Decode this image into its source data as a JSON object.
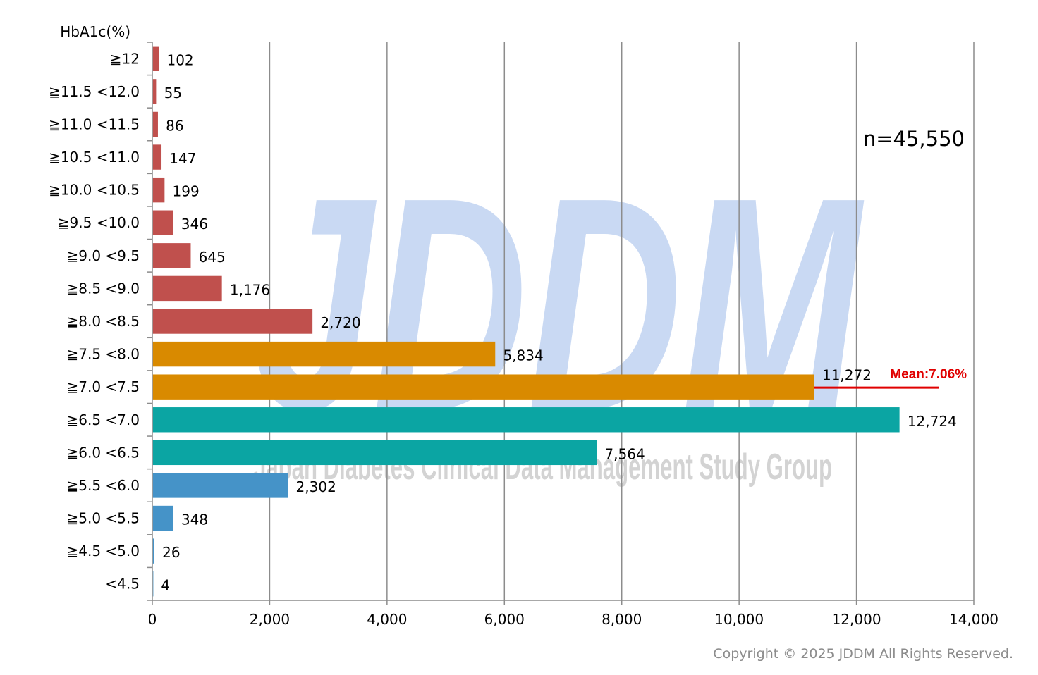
{
  "chart_data": {
    "type": "bar",
    "orientation": "horizontal",
    "ylabel": "HbA1c(%)",
    "categories": [
      "≧12",
      "≧11.5 <12.0",
      "≧11.0 <11.5",
      "≧10.5 <11.0",
      "≧10.0 <10.5",
      "≧9.5 <10.0",
      "≧9.0 <9.5",
      "≧8.5 <9.0",
      "≧8.0 <8.5",
      "≧7.5 <8.0",
      "≧7.0 <7.5",
      "≧6.5 <7.0",
      "≧6.0 <6.5",
      "≧5.5 <6.0",
      "≧5.0 <5.5",
      "≧4.5 <5.0",
      "<4.5"
    ],
    "values": [
      102,
      55,
      86,
      147,
      199,
      346,
      645,
      1176,
      2720,
      5834,
      11272,
      12724,
      7564,
      2302,
      348,
      26,
      4
    ],
    "value_labels": [
      "102",
      "55",
      "86",
      "147",
      "199",
      "346",
      "645",
      "1,176",
      "2,720",
      "5,834",
      "11,272",
      "12,724",
      "7,564",
      "2,302",
      "348",
      "26",
      "4"
    ],
    "bar_colors": [
      "#c0504d",
      "#c0504d",
      "#c0504d",
      "#c0504d",
      "#c0504d",
      "#c0504d",
      "#c0504d",
      "#c0504d",
      "#c0504d",
      "#d98a00",
      "#d98a00",
      "#0ba5a3",
      "#0ba5a3",
      "#4593c8",
      "#4593c8",
      "#4593c8",
      "#4593c8"
    ],
    "xlim": [
      0,
      14000
    ],
    "xticks": [
      0,
      2000,
      4000,
      6000,
      8000,
      10000,
      12000,
      14000
    ],
    "xtick_labels": [
      "0",
      "2,000",
      "4,000",
      "6,000",
      "8,000",
      "10,000",
      "12,000",
      "14,000"
    ],
    "grid": "vertical",
    "mean": {
      "label": "Mean:7.06%",
      "color": "#e00000",
      "category_position": 10.5,
      "x_start": 11272,
      "x_end": 13400
    },
    "n_label": "n=45,550"
  },
  "watermark": {
    "text": "JDDM",
    "subtext": "Japan Diabetes Clinical Data Management Study Group",
    "color": "#c9d9f3"
  },
  "copyright": "Copyright © 2025 JDDM All Rights Reserved."
}
